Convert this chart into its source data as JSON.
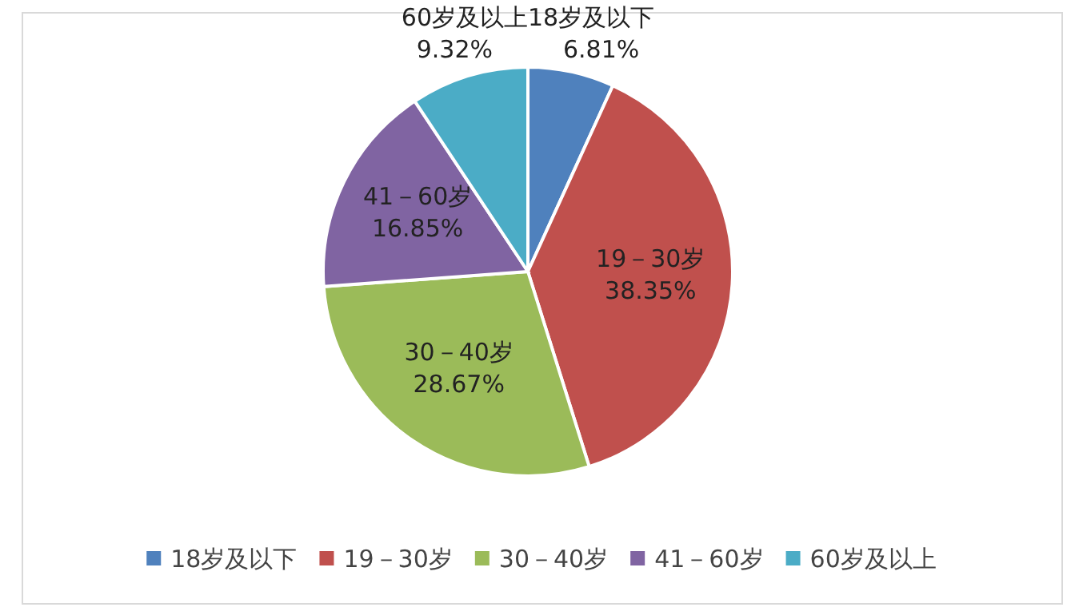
{
  "chart_data": {
    "type": "pie",
    "categories": [
      "18岁及以下",
      "19－30岁",
      "30－40岁",
      "41－60岁",
      "60岁及以上"
    ],
    "values": [
      6.81,
      38.35,
      28.67,
      16.85,
      9.32
    ],
    "colors": [
      "#4f81bd",
      "#c0504d",
      "#9bbb59",
      "#8064a2",
      "#4bacc6"
    ],
    "value_labels": [
      "6.81%",
      "38.35%",
      "28.67%",
      "16.85%",
      "9.32%"
    ],
    "legend": "bottom"
  }
}
